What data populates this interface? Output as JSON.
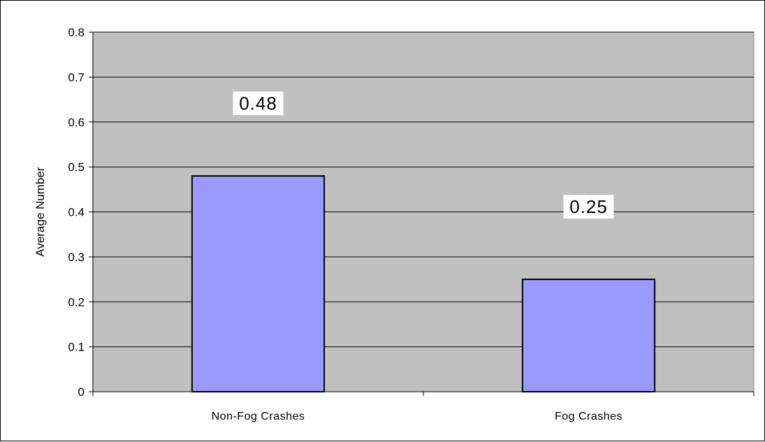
{
  "chart_data": {
    "type": "bar",
    "title": "",
    "xlabel": "",
    "ylabel": "Average Number",
    "categories": [
      "Non-Fog Crashes",
      "Fog Crashes"
    ],
    "values": [
      0.48,
      0.25
    ],
    "data_labels": [
      "0.48",
      "0.25"
    ],
    "ylim": [
      0,
      0.8
    ],
    "yticks": [
      "0",
      "0.1",
      "0.2",
      "0.3",
      "0.4",
      "0.5",
      "0.6",
      "0.7",
      "0.8"
    ],
    "grid": true,
    "legend": "none",
    "colors": {
      "bar_fill": "#9999ff",
      "bar_stroke": "#000000",
      "plot_background": "#c0c0c0",
      "gridline": "#000000",
      "data_label_background": "#ffffff"
    }
  }
}
